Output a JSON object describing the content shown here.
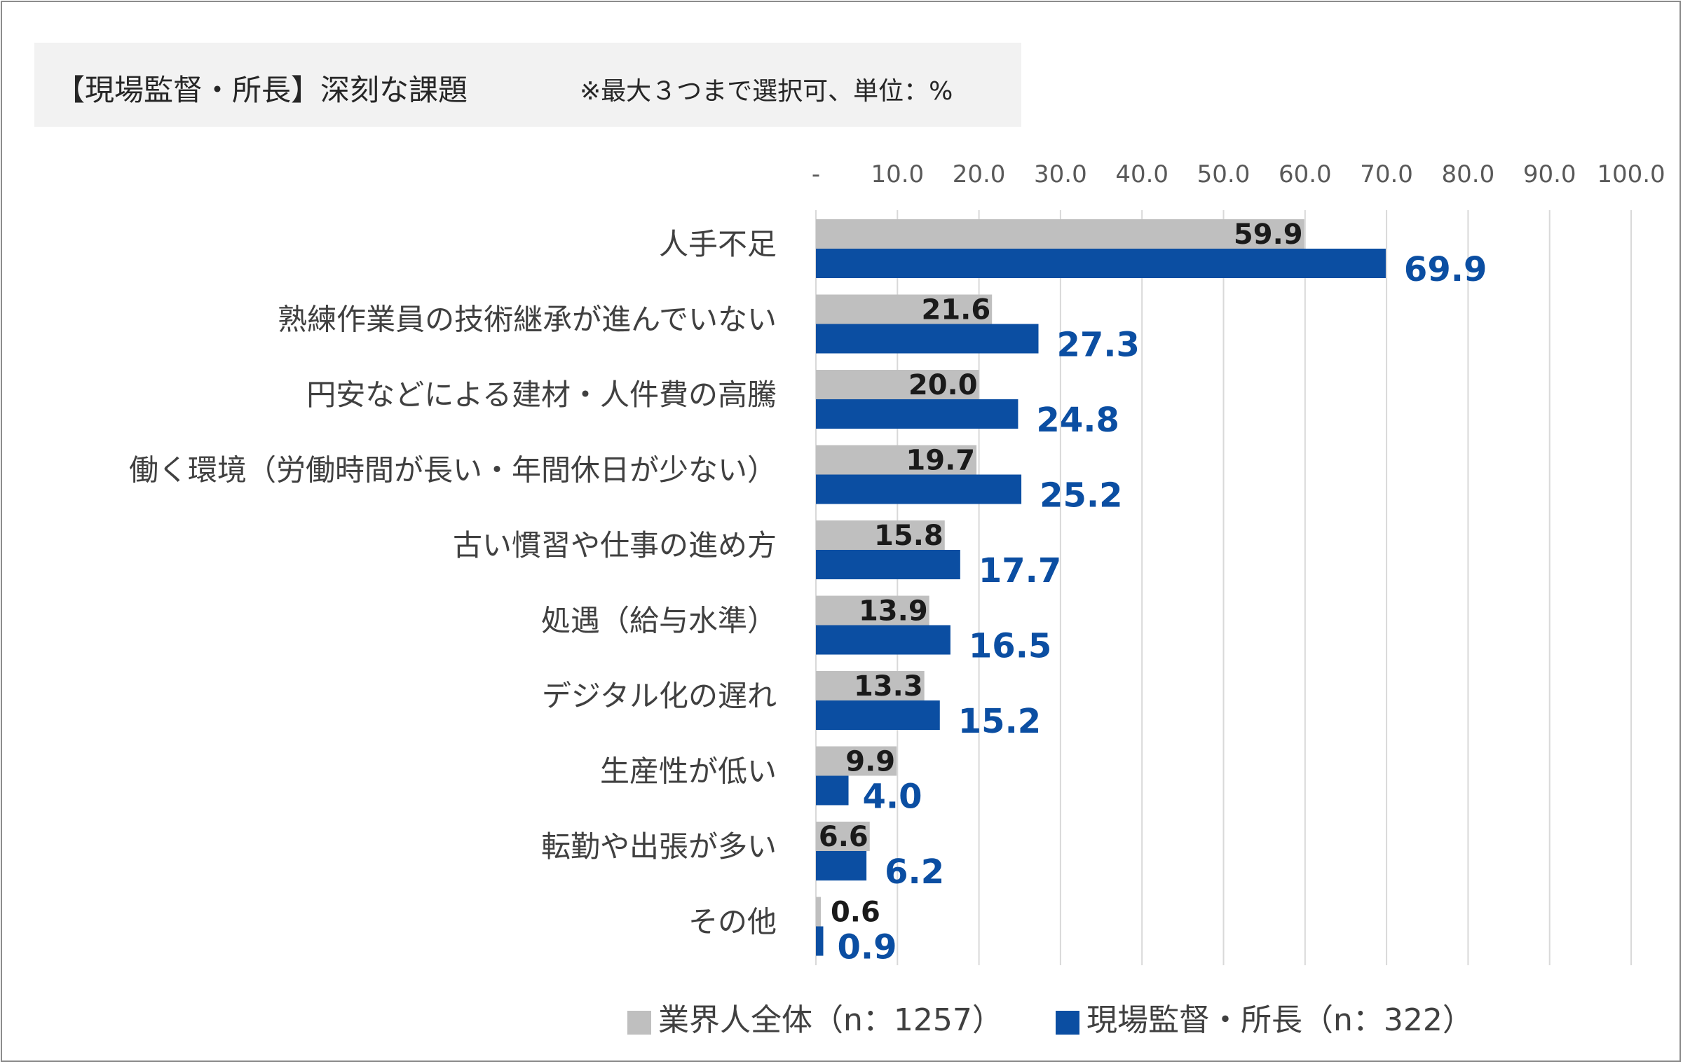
{
  "title": "【現場監督・所長】深刻な課題",
  "note": "※最大３つまで選択可、単位：%",
  "colors": {
    "all": "#bfbfbf",
    "site": "#0b4ea2",
    "grid": "#d9d9d9"
  },
  "chart_data": {
    "type": "bar",
    "orientation": "horizontal",
    "title": "【現場監督・所長】深刻な課題",
    "xlim": [
      0,
      100
    ],
    "x_ticks": [
      "-",
      "10.0",
      "20.0",
      "30.0",
      "40.0",
      "50.0",
      "60.0",
      "70.0",
      "80.0",
      "90.0",
      "100.0"
    ],
    "axis_position": "top",
    "grid": true,
    "legend_position": "bottom",
    "categories": [
      "人手不足",
      "熟練作業員の技術継承が進んでいない",
      "円安などによる建材・人件費の高騰",
      "働く環境（労働時間が長い・年間休日が少ない）",
      "古い慣習や仕事の進め方",
      "処遇（給与水準）",
      "デジタル化の遅れ",
      "生産性が低い",
      "転勤や出張が多い",
      "その他"
    ],
    "series": [
      {
        "name": "業界人全体（n：1257）",
        "values": [
          59.9,
          21.6,
          20.0,
          19.7,
          15.8,
          13.9,
          13.3,
          9.9,
          6.6,
          0.6
        ],
        "labels": [
          "59.9",
          "21.6",
          "20.0",
          "19.7",
          "15.8",
          "13.9",
          "13.3",
          "9.9",
          "6.6",
          "0.6"
        ]
      },
      {
        "name": "現場監督・所長（n：322）",
        "values": [
          69.9,
          27.3,
          24.8,
          25.2,
          17.7,
          16.5,
          15.2,
          4.0,
          6.2,
          0.9
        ],
        "labels": [
          "69.9",
          "27.3",
          "24.8",
          "25.2",
          "17.7",
          "16.5",
          "15.2",
          "4.0",
          "6.2",
          "0.9"
        ]
      }
    ]
  }
}
